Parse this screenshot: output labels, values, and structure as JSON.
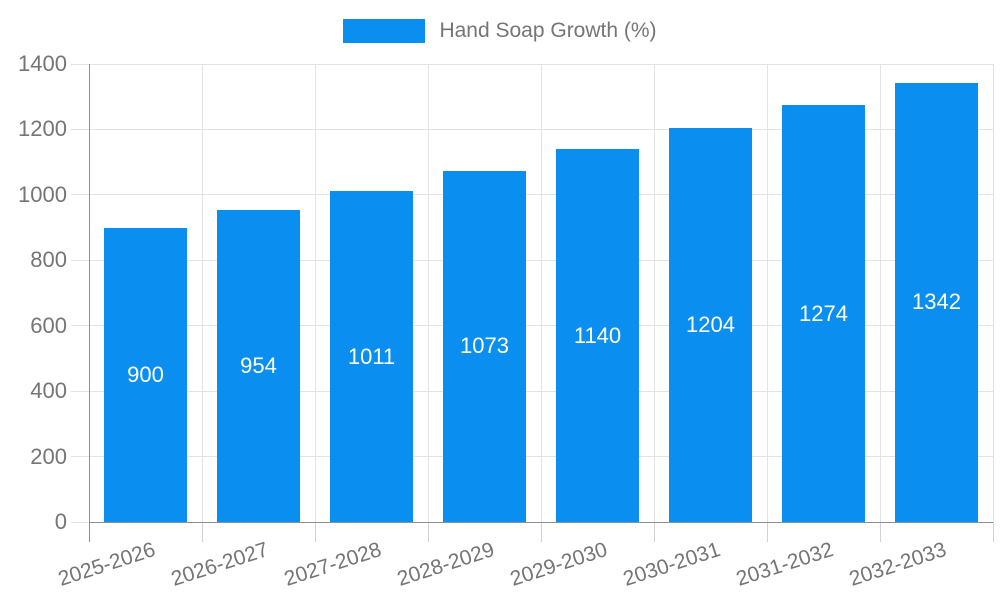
{
  "legend": {
    "swatch_color": "#0a8ff0",
    "label": "Hand Soap Growth (%)"
  },
  "colors": {
    "bar": "#0a8ff0",
    "grid": "#e3e3e3",
    "axis": "#8f8f8f",
    "tick": "#d2d2d2",
    "text": "#757575",
    "value_label": "#ffffff",
    "background": "#ffffff"
  },
  "chart_data": {
    "type": "bar",
    "title": "Hand Soap Growth (%)",
    "categories": [
      "2025-2026",
      "2026-2027",
      "2027-2028",
      "2028-2029",
      "2029-2030",
      "2030-2031",
      "2031-2032",
      "2032-2033"
    ],
    "values": [
      900,
      954,
      1011,
      1073,
      1140,
      1204,
      1274,
      1342
    ],
    "series_name": "Hand Soap Growth (%)",
    "xlabel": "",
    "ylabel": "",
    "ylim": [
      0,
      1400
    ],
    "yticks": [
      0,
      200,
      400,
      600,
      800,
      1000,
      1200,
      1400
    ],
    "grid": true,
    "legend_position": "top-center",
    "value_labels": "inside-center",
    "x_label_rotation_deg": -18
  }
}
